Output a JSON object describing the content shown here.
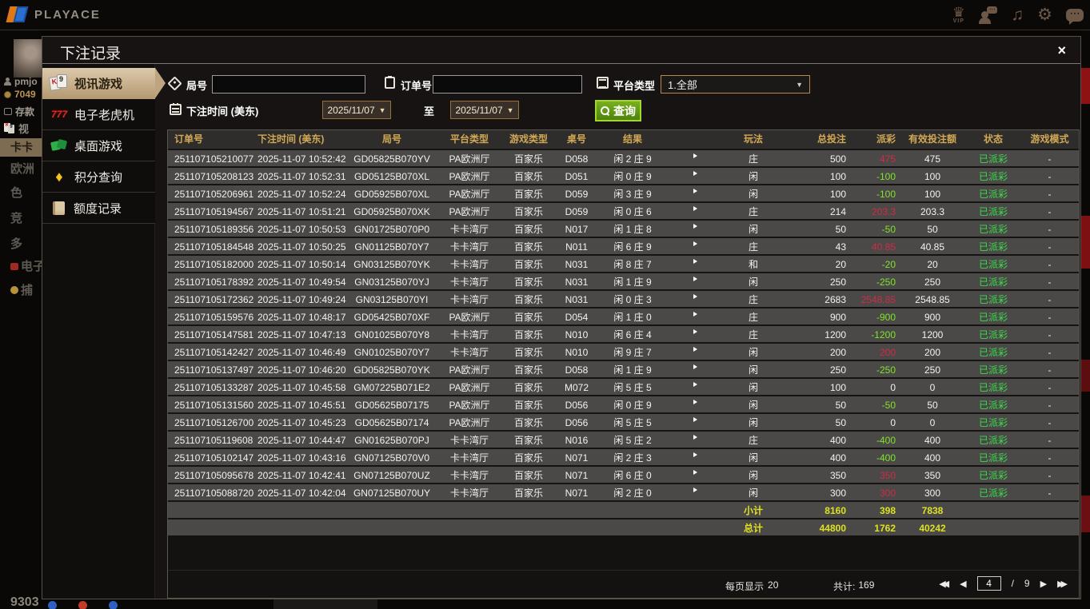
{
  "topbar": {
    "logo_text": "PLAYACE",
    "vip_label": "VIP"
  },
  "background": {
    "username": "pmjo",
    "balance": "7049",
    "deposit_label": "存款",
    "video_label": "视",
    "menu_items": [
      {
        "key": "kaka",
        "label": "卡卡",
        "highlight": true
      },
      {
        "key": "europe",
        "label": "欧洲"
      },
      {
        "key": "se",
        "label": "色"
      },
      {
        "key": "jing",
        "label": "竞"
      },
      {
        "key": "duo",
        "label": "多"
      },
      {
        "key": "dianzi",
        "label": "电子"
      },
      {
        "key": "bu",
        "label": "捕"
      }
    ],
    "bottom_text": "9303"
  },
  "modal": {
    "title": "下注记录",
    "close_icon": "×",
    "sidebar": [
      {
        "key": "video-games",
        "label": "视讯游戏",
        "icon": "video-cards-icon",
        "active": true
      },
      {
        "key": "slots",
        "label": "电子老虎机",
        "icon": "slot-777-icon",
        "active": false
      },
      {
        "key": "table-games",
        "label": "桌面游戏",
        "icon": "table-games-icon",
        "active": false
      },
      {
        "key": "points",
        "label": "积分查询",
        "icon": "points-diamond-icon",
        "active": false
      },
      {
        "key": "quota",
        "label": "额度记录",
        "icon": "quota-doc-icon",
        "active": false
      }
    ],
    "filters": {
      "round_label": "局号",
      "order_label": "订单号",
      "platform_label": "平台类型",
      "platform_value": "1.全部",
      "time_label": "下注时间 (美东)",
      "date_from": "2025/11/07",
      "date_to": "2025/11/07",
      "to_label": "至",
      "search_label": "查询",
      "caret": "▼"
    },
    "table": {
      "headers": [
        "订单号",
        "下注时间 (美东)",
        "局号",
        "平台类型",
        "游戏类型",
        "桌号",
        "结果",
        "",
        "玩法",
        "总投注",
        "派彩",
        "有效投注额",
        "状态",
        "游戏模式"
      ],
      "rows": [
        {
          "order": "251107105210077",
          "time": "2025-11-07 10:52:42",
          "round": "GD05825B070YV",
          "platform": "PA欧洲厅",
          "game": "百家乐",
          "table": "D058",
          "result": "闲 2 庄 9",
          "play": "庄",
          "bet": "500",
          "payout": "475",
          "payout_color": "red",
          "valid": "475",
          "status": "已派彩",
          "mode": "-"
        },
        {
          "order": "251107105208123",
          "time": "2025-11-07 10:52:31",
          "round": "GD05125B070XL",
          "platform": "PA欧洲厅",
          "game": "百家乐",
          "table": "D051",
          "result": "闲 0 庄 9",
          "play": "闲",
          "bet": "100",
          "payout": "-100",
          "payout_color": "green",
          "valid": "100",
          "status": "已派彩",
          "mode": "-"
        },
        {
          "order": "251107105206961",
          "time": "2025-11-07 10:52:24",
          "round": "GD05925B070XL",
          "platform": "PA欧洲厅",
          "game": "百家乐",
          "table": "D059",
          "result": "闲 3 庄 9",
          "play": "闲",
          "bet": "100",
          "payout": "-100",
          "payout_color": "green",
          "valid": "100",
          "status": "已派彩",
          "mode": "-"
        },
        {
          "order": "251107105194567",
          "time": "2025-11-07 10:51:21",
          "round": "GD05925B070XK",
          "platform": "PA欧洲厅",
          "game": "百家乐",
          "table": "D059",
          "result": "闲 0 庄 6",
          "play": "庄",
          "bet": "214",
          "payout": "203.3",
          "payout_color": "red",
          "valid": "203.3",
          "status": "已派彩",
          "mode": "-"
        },
        {
          "order": "251107105189356",
          "time": "2025-11-07 10:50:53",
          "round": "GN01725B070P0",
          "platform": "卡卡湾厅",
          "game": "百家乐",
          "table": "N017",
          "result": "闲 1 庄 8",
          "play": "闲",
          "bet": "50",
          "payout": "-50",
          "payout_color": "green",
          "valid": "50",
          "status": "已派彩",
          "mode": "-"
        },
        {
          "order": "251107105184548",
          "time": "2025-11-07 10:50:25",
          "round": "GN01125B070Y7",
          "platform": "卡卡湾厅",
          "game": "百家乐",
          "table": "N011",
          "result": "闲 6 庄 9",
          "play": "庄",
          "bet": "43",
          "payout": "40.85",
          "payout_color": "red",
          "valid": "40.85",
          "status": "已派彩",
          "mode": "-"
        },
        {
          "order": "251107105182000",
          "time": "2025-11-07 10:50:14",
          "round": "GN03125B070YK",
          "platform": "卡卡湾厅",
          "game": "百家乐",
          "table": "N031",
          "result": "闲 8 庄 7",
          "play": "和",
          "bet": "20",
          "payout": "-20",
          "payout_color": "green",
          "valid": "20",
          "status": "已派彩",
          "mode": "-"
        },
        {
          "order": "251107105178392",
          "time": "2025-11-07 10:49:54",
          "round": "GN03125B070YJ",
          "platform": "卡卡湾厅",
          "game": "百家乐",
          "table": "N031",
          "result": "闲 1 庄 9",
          "play": "闲",
          "bet": "250",
          "payout": "-250",
          "payout_color": "green",
          "valid": "250",
          "status": "已派彩",
          "mode": "-"
        },
        {
          "order": "251107105172362",
          "time": "2025-11-07 10:49:24",
          "round": "GN03125B070YI",
          "platform": "卡卡湾厅",
          "game": "百家乐",
          "table": "N031",
          "result": "闲 0 庄 3",
          "play": "庄",
          "bet": "2683",
          "payout": "2548.85",
          "payout_color": "red",
          "valid": "2548.85",
          "status": "已派彩",
          "mode": "-"
        },
        {
          "order": "251107105159576",
          "time": "2025-11-07 10:48:17",
          "round": "GD05425B070XF",
          "platform": "PA欧洲厅",
          "game": "百家乐",
          "table": "D054",
          "result": "闲 1 庄 0",
          "play": "庄",
          "bet": "900",
          "payout": "-900",
          "payout_color": "green",
          "valid": "900",
          "status": "已派彩",
          "mode": "-"
        },
        {
          "order": "251107105147581",
          "time": "2025-11-07 10:47:13",
          "round": "GN01025B070Y8",
          "platform": "卡卡湾厅",
          "game": "百家乐",
          "table": "N010",
          "result": "闲 6 庄 4",
          "play": "庄",
          "bet": "1200",
          "payout": "-1200",
          "payout_color": "green",
          "valid": "1200",
          "status": "已派彩",
          "mode": "-"
        },
        {
          "order": "251107105142427",
          "time": "2025-11-07 10:46:49",
          "round": "GN01025B070Y7",
          "platform": "卡卡湾厅",
          "game": "百家乐",
          "table": "N010",
          "result": "闲 9 庄 7",
          "play": "闲",
          "bet": "200",
          "payout": "200",
          "payout_color": "red",
          "valid": "200",
          "status": "已派彩",
          "mode": "-"
        },
        {
          "order": "251107105137497",
          "time": "2025-11-07 10:46:20",
          "round": "GD05825B070YK",
          "platform": "PA欧洲厅",
          "game": "百家乐",
          "table": "D058",
          "result": "闲 1 庄 9",
          "play": "闲",
          "bet": "250",
          "payout": "-250",
          "payout_color": "green",
          "valid": "250",
          "status": "已派彩",
          "mode": "-"
        },
        {
          "order": "251107105133287",
          "time": "2025-11-07 10:45:58",
          "round": "GM07225B071E2",
          "platform": "PA欧洲厅",
          "game": "百家乐",
          "table": "M072",
          "result": "闲 5 庄 5",
          "play": "闲",
          "bet": "100",
          "payout": "0",
          "payout_color": "white",
          "valid": "0",
          "status": "已派彩",
          "mode": "-"
        },
        {
          "order": "251107105131560",
          "time": "2025-11-07 10:45:51",
          "round": "GD05625B07175",
          "platform": "PA欧洲厅",
          "game": "百家乐",
          "table": "D056",
          "result": "闲 0 庄 9",
          "play": "闲",
          "bet": "50",
          "payout": "-50",
          "payout_color": "green",
          "valid": "50",
          "status": "已派彩",
          "mode": "-"
        },
        {
          "order": "251107105126700",
          "time": "2025-11-07 10:45:23",
          "round": "GD05625B07174",
          "platform": "PA欧洲厅",
          "game": "百家乐",
          "table": "D056",
          "result": "闲 5 庄 5",
          "play": "闲",
          "bet": "50",
          "payout": "0",
          "payout_color": "white",
          "valid": "0",
          "status": "已派彩",
          "mode": "-"
        },
        {
          "order": "251107105119608",
          "time": "2025-11-07 10:44:47",
          "round": "GN01625B070PJ",
          "platform": "卡卡湾厅",
          "game": "百家乐",
          "table": "N016",
          "result": "闲 5 庄 2",
          "play": "庄",
          "bet": "400",
          "payout": "-400",
          "payout_color": "green",
          "valid": "400",
          "status": "已派彩",
          "mode": "-"
        },
        {
          "order": "251107105102147",
          "time": "2025-11-07 10:43:16",
          "round": "GN07125B070V0",
          "platform": "卡卡湾厅",
          "game": "百家乐",
          "table": "N071",
          "result": "闲 2 庄 3",
          "play": "闲",
          "bet": "400",
          "payout": "-400",
          "payout_color": "green",
          "valid": "400",
          "status": "已派彩",
          "mode": "-"
        },
        {
          "order": "251107105095678",
          "time": "2025-11-07 10:42:41",
          "round": "GN07125B070UZ",
          "platform": "卡卡湾厅",
          "game": "百家乐",
          "table": "N071",
          "result": "闲 6 庄 0",
          "play": "闲",
          "bet": "350",
          "payout": "350",
          "payout_color": "red",
          "valid": "350",
          "status": "已派彩",
          "mode": "-"
        },
        {
          "order": "251107105088720",
          "time": "2025-11-07 10:42:04",
          "round": "GN07125B070UY",
          "platform": "卡卡湾厅",
          "game": "百家乐",
          "table": "N071",
          "result": "闲 2 庄 0",
          "play": "闲",
          "bet": "300",
          "payout": "300",
          "payout_color": "red",
          "valid": "300",
          "status": "已派彩",
          "mode": "-"
        }
      ],
      "subtotal": {
        "label": "小计",
        "bet": "8160",
        "payout": "398",
        "valid": "7838"
      },
      "grand_total": {
        "label": "总计",
        "bet": "44800",
        "payout": "1762",
        "valid": "40242"
      }
    },
    "pagination": {
      "per_page_label": "每页显示",
      "per_page_value": "20",
      "total_label": "共计:",
      "total_value": "169",
      "current_page": "4",
      "separator": "/",
      "total_pages": "9",
      "first_icon": "◀◀",
      "prev_icon": "◀",
      "next_icon": "▶",
      "last_icon": "▶▶"
    }
  }
}
